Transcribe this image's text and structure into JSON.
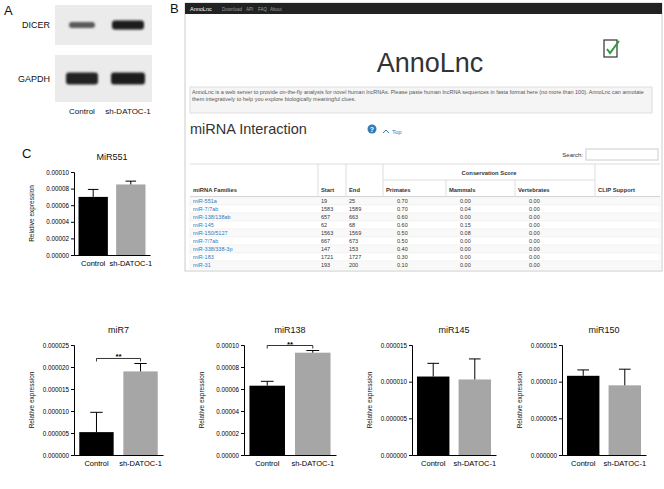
{
  "panel_labels": [
    "A",
    "B",
    "C"
  ],
  "blot": {
    "rows": [
      "DICER",
      "GAPDH"
    ],
    "lanes": [
      "Control",
      "sh-DATOC-1"
    ]
  },
  "annolnc": {
    "nav_brand": "AnnoLnc",
    "nav_links": [
      "Download",
      "API",
      "FAQ",
      "About"
    ],
    "title": "AnnoLnc",
    "description": "AnnoLnc is a web server to provide on-the-fly analysis for novel human lncRNAs. Please paste human lncRNA sequences in fasta format here (no more than 100). AnnoLnc can annotate them integratively to help you explore biologically meaningful clues.",
    "section": "miRNA Interaction",
    "help": "?",
    "top_link": "Top",
    "search_label": "Search:",
    "group_header": "Conservation Score",
    "columns": [
      "miRNA Families",
      "Start",
      "End",
      "Primates",
      "Mammals",
      "Vertebrates",
      "CLIP Support"
    ],
    "rows": [
      [
        "miR-551a",
        "19",
        "25",
        "0.70",
        "0.00",
        "0.00"
      ],
      [
        "miR-7/7ab",
        "1583",
        "1589",
        "0.70",
        "0.04",
        "0.00"
      ],
      [
        "miR-138/138ab",
        "657",
        "663",
        "0.60",
        "0.00",
        "0.00"
      ],
      [
        "miR-145",
        "62",
        "68",
        "0.60",
        "0.15",
        "0.00"
      ],
      [
        "miR-150/5127",
        "1563",
        "1569",
        "0.50",
        "0.08",
        "0.00"
      ],
      [
        "miR-7/7ab",
        "667",
        "673",
        "0.50",
        "0.00",
        "0.00"
      ],
      [
        "miR-338/338-3p",
        "147",
        "153",
        "0.40",
        "0.00",
        "0.00"
      ],
      [
        "miR-183",
        "1721",
        "1727",
        "0.30",
        "0.00",
        "0.00"
      ],
      [
        "miR-31",
        "193",
        "200",
        "0.10",
        "0.00",
        "0.00"
      ]
    ]
  },
  "chart_data": [
    {
      "type": "bar",
      "title": "MiR551",
      "y_label": "Relative expression",
      "categories": [
        "Control",
        "sh-DATOC-1"
      ],
      "values": [
        7e-05,
        8.5e-05
      ],
      "errors": [
        9e-06,
        4e-06
      ],
      "colors": [
        "#000000",
        "#a6a6a6"
      ],
      "ylim": [
        0,
        0.0001
      ],
      "yticks": [
        {
          "value": 0,
          "label": "0.00000"
        },
        {
          "value": 2e-05,
          "label": "0.00002"
        },
        {
          "value": 4e-05,
          "label": "0.00004"
        },
        {
          "value": 6e-05,
          "label": "0.00006"
        },
        {
          "value": 8e-05,
          "label": "0.00008"
        },
        {
          "value": 0.0001,
          "label": "0.00010"
        }
      ]
    },
    {
      "type": "bar",
      "title": "miR7",
      "y_label": "Relative expression",
      "categories": [
        "Control",
        "sh-DATOC-1"
      ],
      "values": [
        5.2e-06,
        1.9e-05
      ],
      "errors": [
        4.5e-06,
        1.8e-06
      ],
      "colors": [
        "#000000",
        "#a6a6a6"
      ],
      "ylim": [
        0,
        2.5e-05
      ],
      "yticks": [
        {
          "value": 0,
          "label": "0.000000"
        },
        {
          "value": 5e-06,
          "label": "0.000005"
        },
        {
          "value": 1e-05,
          "label": "0.000010"
        },
        {
          "value": 1.5e-05,
          "label": "0.000015"
        },
        {
          "value": 2e-05,
          "label": "0.000020"
        },
        {
          "value": 2.5e-05,
          "label": "0.000025"
        }
      ],
      "annotations": [
        "**"
      ]
    },
    {
      "type": "bar",
      "title": "miR138",
      "y_label": "Relative expression",
      "categories": [
        "Control",
        "sh-DATOC-1"
      ],
      "values": [
        6.3e-05,
        9.3e-05
      ],
      "errors": [
        4e-06,
        2e-06
      ],
      "colors": [
        "#000000",
        "#a6a6a6"
      ],
      "ylim": [
        0,
        0.0001
      ],
      "yticks": [
        {
          "value": 0,
          "label": "0.00000"
        },
        {
          "value": 2e-05,
          "label": "0.00002"
        },
        {
          "value": 4e-05,
          "label": "0.00004"
        },
        {
          "value": 6e-05,
          "label": "0.00006"
        },
        {
          "value": 8e-05,
          "label": "0.00008"
        },
        {
          "value": 0.0001,
          "label": "0.00010"
        }
      ],
      "annotations": [
        "**"
      ]
    },
    {
      "type": "bar",
      "title": "miR145",
      "y_label": "Relative expression",
      "categories": [
        "Control",
        "sh-DATOC-1"
      ],
      "values": [
        1.07e-05,
        1.03e-05
      ],
      "errors": [
        1.8e-06,
        2.8e-06
      ],
      "colors": [
        "#000000",
        "#a6a6a6"
      ],
      "ylim": [
        0,
        1.5e-05
      ],
      "yticks": [
        {
          "value": 0,
          "label": "0.000000"
        },
        {
          "value": 5e-06,
          "label": "0.000005"
        },
        {
          "value": 1e-05,
          "label": "0.000010"
        },
        {
          "value": 1.5e-05,
          "label": "0.000015"
        }
      ]
    },
    {
      "type": "bar",
      "title": "miR150",
      "y_label": "Relative expression",
      "categories": [
        "Control",
        "sh-DATOC-1"
      ],
      "values": [
        1.08e-05,
        9.5e-06
      ],
      "errors": [
        8e-07,
        2.2e-06
      ],
      "colors": [
        "#000000",
        "#a6a6a6"
      ],
      "ylim": [
        0,
        1.5e-05
      ],
      "yticks": [
        {
          "value": 0,
          "label": "0.000000"
        },
        {
          "value": 5e-06,
          "label": "0.000005"
        },
        {
          "value": 1e-05,
          "label": "0.000010"
        },
        {
          "value": 1.5e-05,
          "label": "0.000015"
        }
      ]
    }
  ]
}
